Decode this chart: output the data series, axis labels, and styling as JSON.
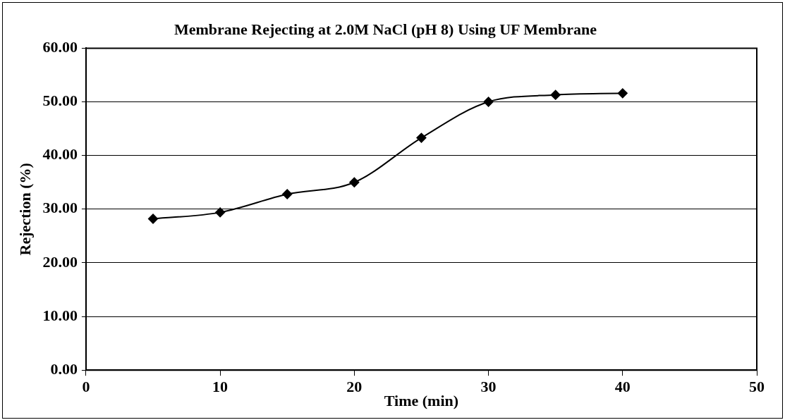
{
  "chart_data": {
    "type": "line",
    "title": "Membrane Rejecting at 2.0M NaCl (pH 8) Using UF Membrane",
    "xlabel": "Time (min)",
    "ylabel": "Rejection (%)",
    "x": [
      5,
      10,
      15,
      20,
      25,
      30,
      35,
      40
    ],
    "series": [
      {
        "color": "#000000",
        "values": [
          28.2,
          29.4,
          32.8,
          35.0,
          43.3,
          50.0,
          51.3,
          51.6
        ]
      }
    ],
    "xlim": [
      0,
      50
    ],
    "xticks": [
      0,
      10,
      20,
      30,
      40,
      50
    ],
    "ylim": [
      0,
      60
    ],
    "yticks": [
      {
        "value": 0,
        "label": "0.00"
      },
      {
        "value": 10,
        "label": "10.00"
      },
      {
        "value": 20,
        "label": "20.00"
      },
      {
        "value": 30,
        "label": "30.00"
      },
      {
        "value": 40,
        "label": "40.00"
      },
      {
        "value": 50,
        "label": "50.00"
      },
      {
        "value": 60,
        "label": "60.00"
      }
    ],
    "grid": "y",
    "legend": false,
    "marker": "diamond",
    "line_style": "solid"
  }
}
